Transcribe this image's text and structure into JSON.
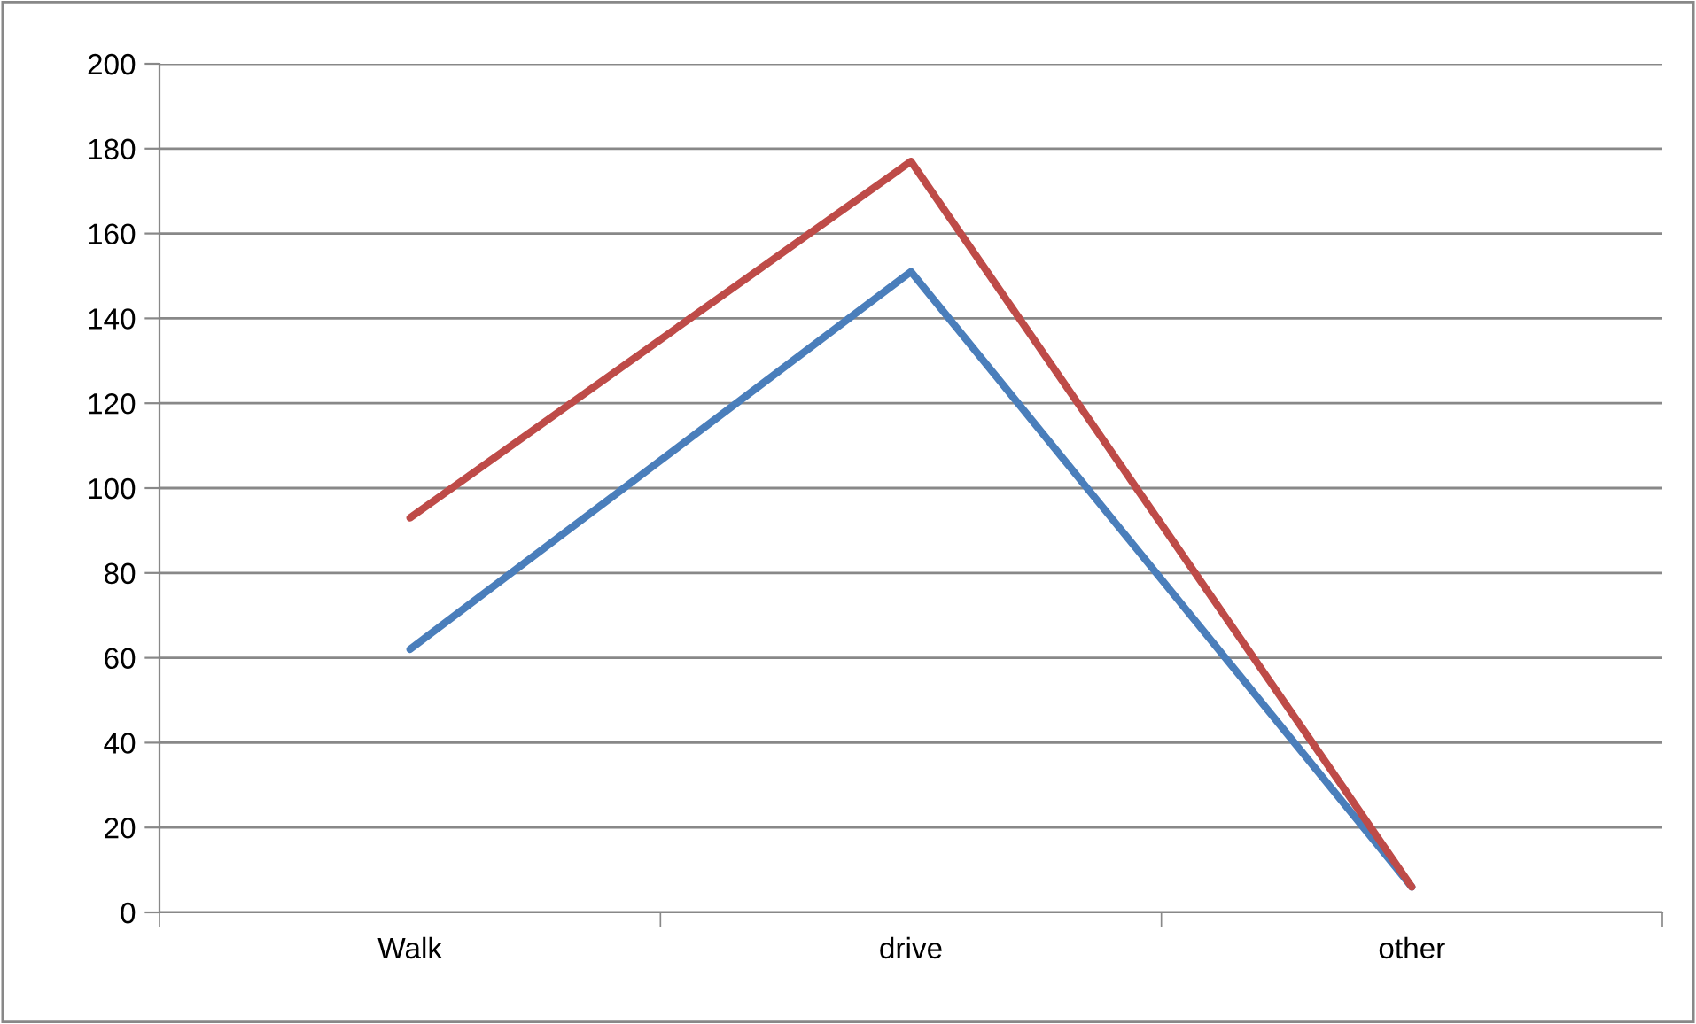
{
  "chart_data": {
    "type": "line",
    "categories": [
      "Walk",
      "drive",
      "other"
    ],
    "series": [
      {
        "color": "#4a7ebb",
        "values": [
          62,
          151,
          6
        ]
      },
      {
        "color": "#be4b48",
        "values": [
          93,
          177,
          6
        ]
      }
    ],
    "ylim": [
      0,
      200
    ],
    "yticks": [
      0,
      20,
      40,
      60,
      80,
      100,
      120,
      140,
      160,
      180,
      200
    ],
    "grid": "y",
    "marker": "none",
    "line_style": "solid"
  }
}
